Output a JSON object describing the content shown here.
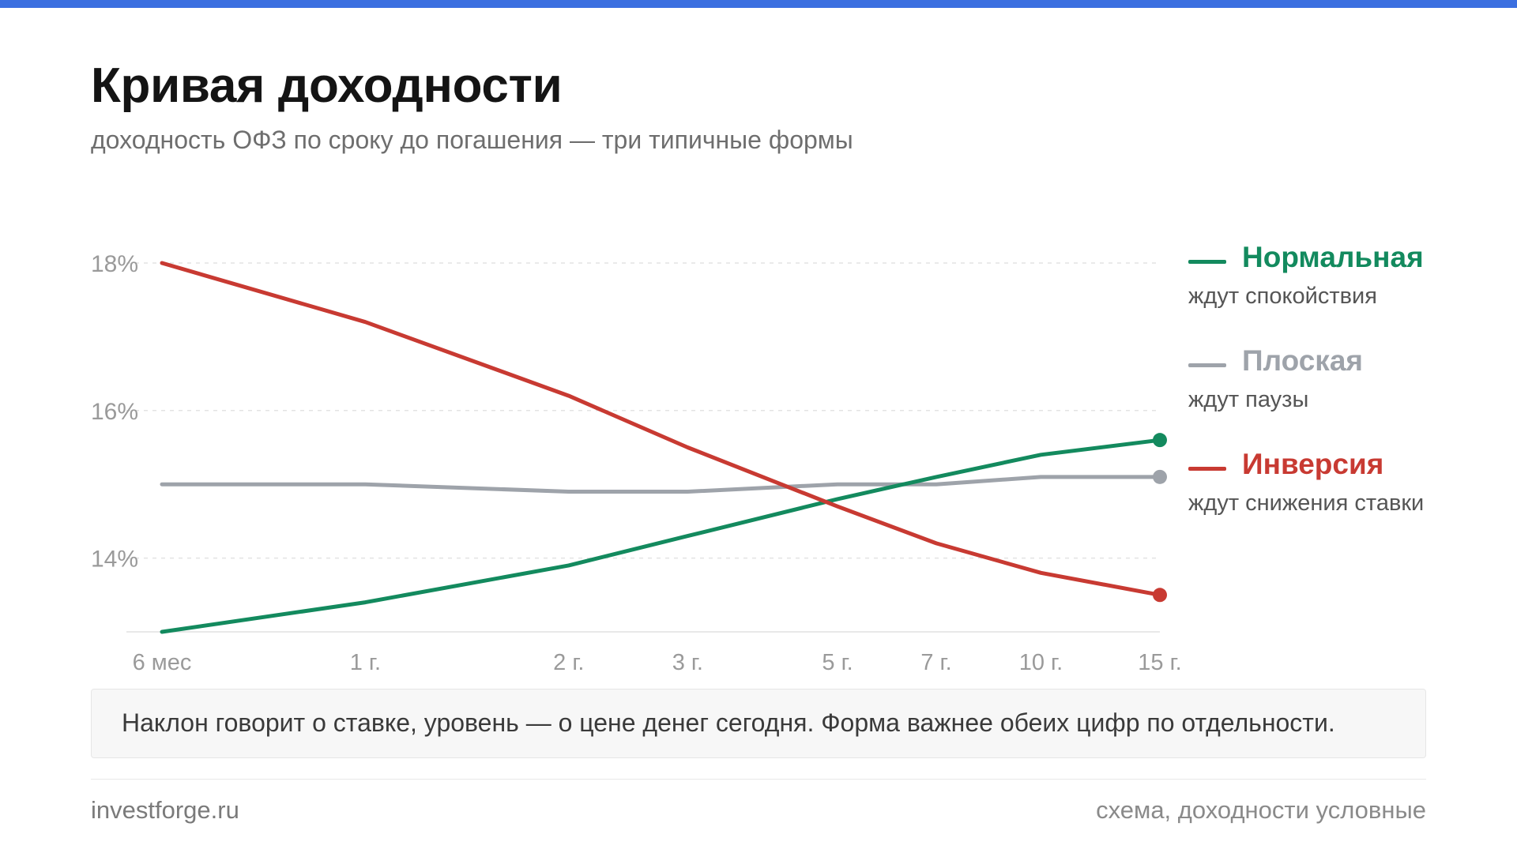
{
  "header": {
    "title": "Кривая доходности",
    "subtitle": "доходность ОФЗ по сроку до погашения — три типичные формы"
  },
  "chart_data": {
    "type": "line",
    "x": [
      "6 мес",
      "1 г.",
      "2 г.",
      "3 г.",
      "5 г.",
      "7 г.",
      "10 г.",
      "15 г."
    ],
    "x_years": [
      0.5,
      1,
      2,
      3,
      5,
      7,
      10,
      15
    ],
    "y_ticks": [
      "18%",
      "16%",
      "14%"
    ],
    "y_tick_values": [
      18,
      16,
      14
    ],
    "ylim": [
      13,
      18
    ],
    "grid": "horizontal-dashed",
    "legend_position": "right",
    "series": [
      {
        "name": "Нормальная",
        "description": "ждут спокойствия",
        "color": "#138a5e",
        "values": [
          13.0,
          13.4,
          13.9,
          14.3,
          14.8,
          15.1,
          15.4,
          15.6
        ]
      },
      {
        "name": "Плоская",
        "description": "ждут паузы",
        "color": "#9ea3aa",
        "values": [
          15.0,
          15.0,
          14.9,
          14.9,
          15.0,
          15.0,
          15.1,
          15.1
        ]
      },
      {
        "name": "Инверсия",
        "description": "ждут снижения ставки",
        "color": "#c83a32",
        "values": [
          18.0,
          17.2,
          16.2,
          15.5,
          14.7,
          14.2,
          13.8,
          13.5
        ]
      }
    ]
  },
  "note": {
    "text": "Наклон говорит о ставке, уровень — о цене денег сегодня. Форма важнее обеих цифр по отдельности."
  },
  "footer": {
    "left": "investforge.ru",
    "right": "схема, доходности условные"
  }
}
